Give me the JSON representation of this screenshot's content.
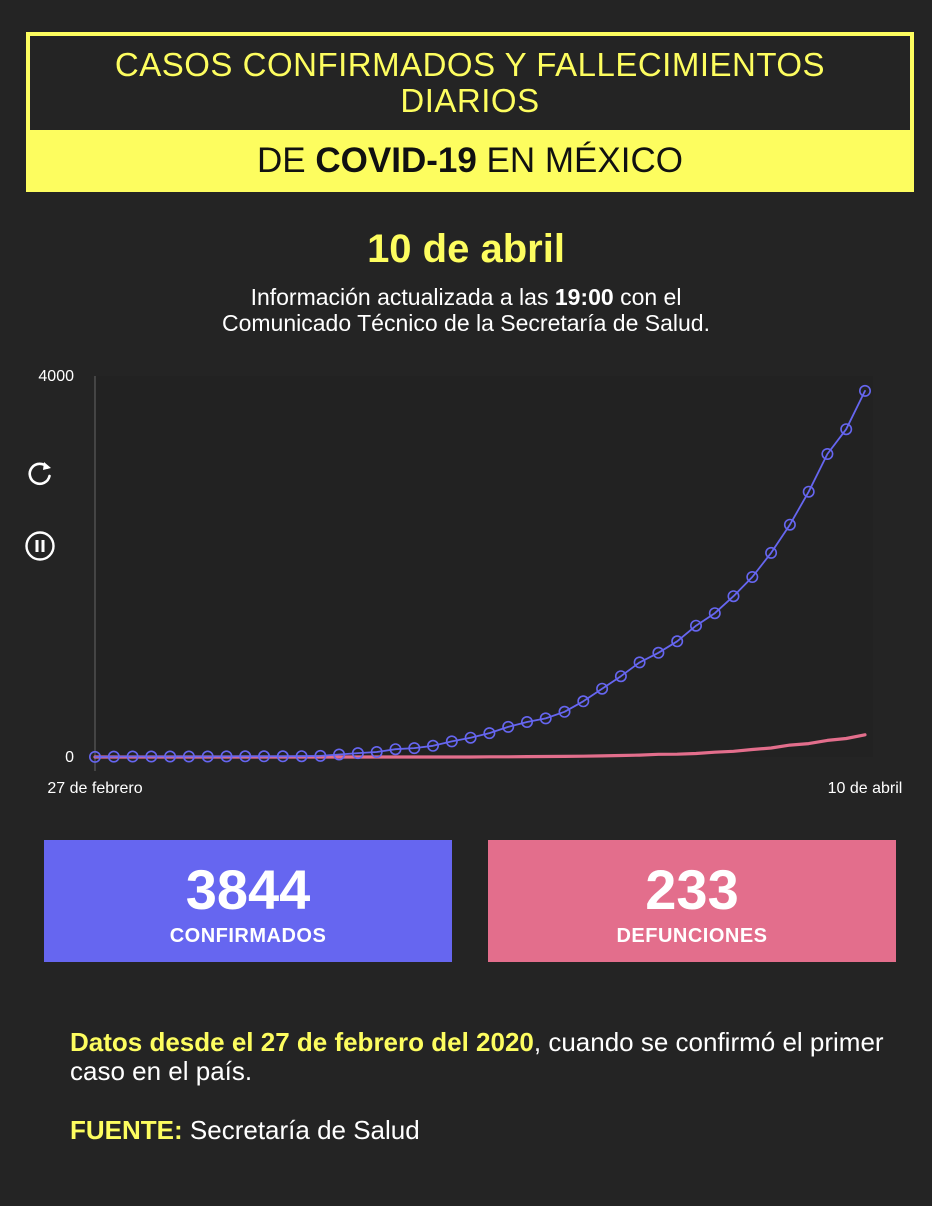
{
  "header": {
    "title": "CASOS CONFIRMADOS Y FALLECIMIENTOS DIARIOS",
    "subtitle_prefix": "DE",
    "subtitle_bold": "COVID-19",
    "subtitle_suffix": "EN MÉXICO"
  },
  "date": "10 de abril",
  "update": {
    "prefix": "Información actualizada a las",
    "time": "19:00",
    "suffix": "con el",
    "line2": "Comunicado Técnico de la Secretaría de Salud."
  },
  "controls": {
    "replay_icon": "replay-icon",
    "pause_icon": "pause-icon"
  },
  "chart_data": {
    "type": "line",
    "x_start_label": "27 de febrero",
    "x_end_label": "10 de abril",
    "ylim": [
      0,
      4000
    ],
    "y_ticks": [
      "0",
      "4000"
    ],
    "grid": false,
    "series": [
      {
        "name": "CONFIRMADOS",
        "color": "#6666f0",
        "markers": true,
        "values": [
          1,
          4,
          5,
          5,
          5,
          5,
          5,
          6,
          7,
          7,
          7,
          8,
          12,
          26,
          41,
          53,
          82,
          93,
          118,
          164,
          203,
          251,
          316,
          367,
          405,
          475,
          585,
          717,
          848,
          993,
          1094,
          1215,
          1378,
          1510,
          1688,
          1890,
          2143,
          2439,
          2785,
          3181,
          3441,
          3844
        ]
      },
      {
        "name": "DEFUNCIONES",
        "color": "#e36e8c",
        "markers": false,
        "values": [
          0,
          0,
          0,
          0,
          0,
          0,
          0,
          0,
          0,
          0,
          0,
          0,
          0,
          0,
          0,
          0,
          0,
          0,
          0,
          0,
          0,
          2,
          2,
          4,
          5,
          6,
          8,
          12,
          16,
          20,
          28,
          29,
          37,
          50,
          60,
          79,
          94,
          125,
          141,
          174,
          194,
          233
        ]
      }
    ]
  },
  "cards": {
    "confirmed": {
      "value": "3844",
      "label": "CONFIRMADOS",
      "color": "#6666f0"
    },
    "deaths": {
      "value": "233",
      "label": "DEFUNCIONES",
      "color": "#e36e8c"
    }
  },
  "footer": {
    "highlight": "Datos desde el 27 de febrero del 2020",
    "text": ", cuando se confirmó el primer caso en el país.",
    "source_label": "FUENTE:",
    "source_value": "Secretaría de Salud"
  },
  "colors": {
    "background": "#242424",
    "accent_yellow": "#fdfd5f"
  }
}
